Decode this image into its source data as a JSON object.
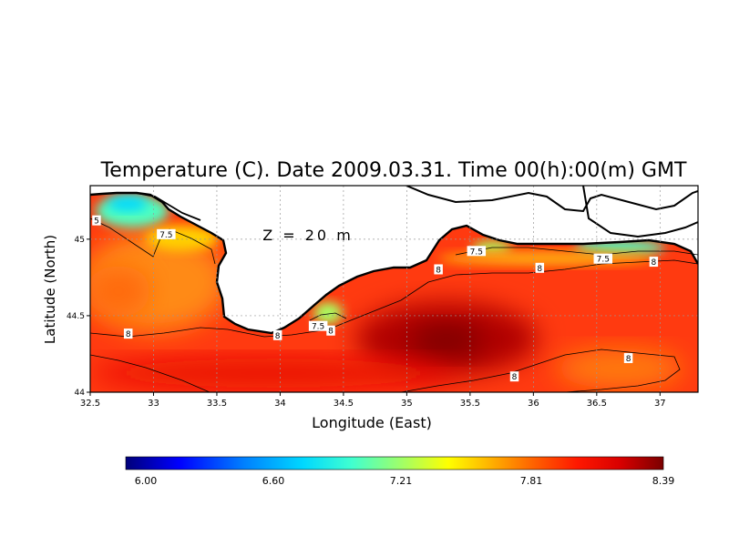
{
  "title": "Temperature (C). Date 2009.03.31. Time 00(h):00(m) GMT",
  "depth_label": "Z = 20 m",
  "x_axis": {
    "label": "Longitude (East)",
    "range": [
      32.5,
      37.3
    ],
    "ticks": [
      "32.5",
      "33",
      "33.5",
      "34",
      "34.5",
      "35",
      "35.5",
      "36",
      "36.5",
      "37"
    ],
    "tick_values": [
      32.5,
      33,
      33.5,
      34,
      34.5,
      35,
      35.5,
      36,
      36.5,
      37
    ]
  },
  "y_axis": {
    "label": "Latitude (North)",
    "range": [
      44.0,
      45.35
    ],
    "ticks": [
      "44",
      "44.5",
      "45"
    ],
    "tick_values": [
      44,
      44.5,
      45
    ]
  },
  "grid": "dotted",
  "colorbar": {
    "labels": [
      "6.00",
      "6.60",
      "7.21",
      "7.81",
      "8.39"
    ],
    "min": 6.0,
    "max": 8.39,
    "colors": [
      "#00007a",
      "#0000ff",
      "#0080ff",
      "#00d8ff",
      "#40ffd0",
      "#a8ff60",
      "#ffff00",
      "#ffb000",
      "#ff6000",
      "#ff1800",
      "#d80000",
      "#7a0000"
    ]
  },
  "contour_labels": [
    {
      "text": "5",
      "lon": 32.55,
      "lat": 45.12
    },
    {
      "text": "7.5",
      "lon": 33.1,
      "lat": 45.03
    },
    {
      "text": "7.5",
      "lon": 34.3,
      "lat": 44.43
    },
    {
      "text": "8",
      "lon": 34.4,
      "lat": 44.4
    },
    {
      "text": "8",
      "lon": 32.8,
      "lat": 44.38
    },
    {
      "text": "8",
      "lon": 33.98,
      "lat": 44.37
    },
    {
      "text": "8",
      "lon": 35.25,
      "lat": 44.8
    },
    {
      "text": "7.5",
      "lon": 35.55,
      "lat": 44.92
    },
    {
      "text": "8",
      "lon": 36.05,
      "lat": 44.81
    },
    {
      "text": "7.5",
      "lon": 36.55,
      "lat": 44.87
    },
    {
      "text": "8",
      "lon": 36.95,
      "lat": 44.85
    },
    {
      "text": "8",
      "lon": 36.75,
      "lat": 44.22
    },
    {
      "text": "8",
      "lon": 35.85,
      "lat": 44.1
    }
  ]
}
